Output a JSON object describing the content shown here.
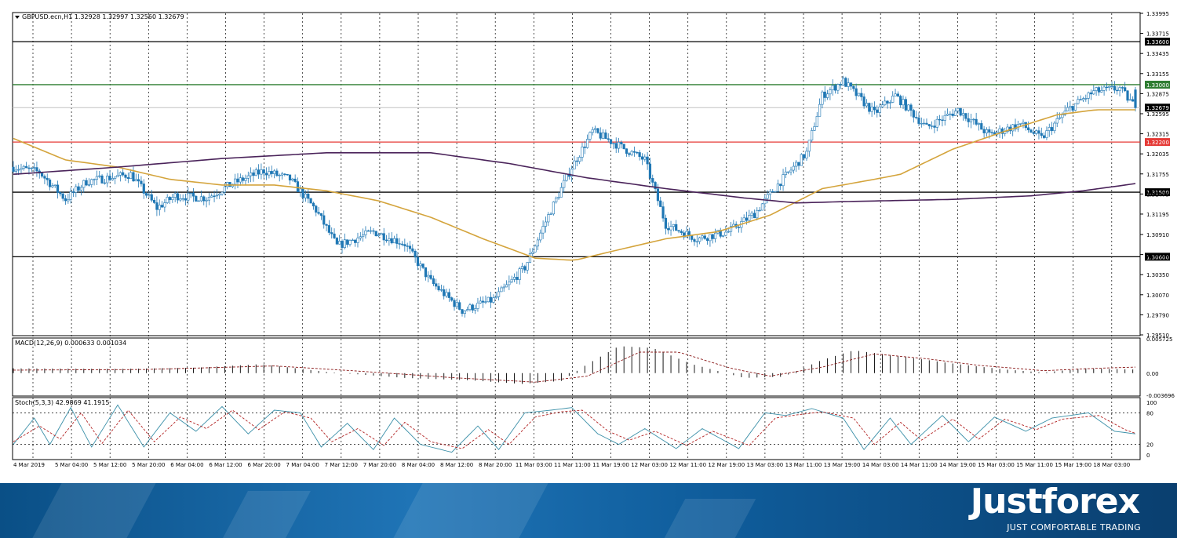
{
  "chart_data": [
    {
      "type": "candlestick",
      "header": "GBPUSD.ecn,H1  1.32928 1.32997 1.32560 1.32679",
      "symbol": "GBPUSD.ecn",
      "timeframe": "H1",
      "ohlc": {
        "open": 1.32928,
        "high": 1.32997,
        "low": 1.3256,
        "close": 1.32679
      },
      "ylim": [
        1.2951,
        1.33995
      ],
      "y_ticks": [
        "1.33995",
        "1.33715",
        "1.33435",
        "1.33155",
        "1.32875",
        "1.32595",
        "1.32315",
        "1.32035",
        "1.31755",
        "1.31475",
        "1.31195",
        "1.30910",
        "1.30630",
        "1.30350",
        "1.30070",
        "1.29790",
        "1.29510"
      ],
      "x_labels": [
        "4 Mar 2019",
        "5 Mar 04:00",
        "5 Mar 12:00",
        "5 Mar 20:00",
        "6 Mar 04:00",
        "6 Mar 12:00",
        "6 Mar 20:00",
        "7 Mar 04:00",
        "7 Mar 12:00",
        "7 Mar 20:00",
        "8 Mar 04:00",
        "8 Mar 12:00",
        "8 Mar 20:00",
        "11 Mar 03:00",
        "11 Mar 11:00",
        "11 Mar 19:00",
        "12 Mar 03:00",
        "12 Mar 11:00",
        "12 Mar 19:00",
        "13 Mar 03:00",
        "13 Mar 11:00",
        "13 Mar 19:00",
        "14 Mar 03:00",
        "14 Mar 11:00",
        "14 Mar 19:00",
        "15 Mar 03:00",
        "15 Mar 11:00",
        "15 Mar 19:00",
        "18 Mar 03:00"
      ],
      "levels": [
        {
          "value": 1.336,
          "label": "1.33600",
          "color": "#000000"
        },
        {
          "value": 1.33,
          "label": "1.33000",
          "color": "#2e7d32"
        },
        {
          "value": 1.3268,
          "label": "1.32679",
          "color": "#c0c0c0"
        },
        {
          "value": 1.322,
          "label": "1.32200",
          "color": "#e53935"
        },
        {
          "value": 1.315,
          "label": "1.31500",
          "color": "#000000"
        },
        {
          "value": 1.306,
          "label": "1.30600",
          "color": "#000000"
        }
      ],
      "price_anchors": [
        [
          0,
          1.3185
        ],
        [
          10,
          1.3178
        ],
        [
          20,
          1.314
        ],
        [
          28,
          1.3165
        ],
        [
          45,
          1.3175
        ],
        [
          55,
          1.3128
        ],
        [
          62,
          1.3145
        ],
        [
          74,
          1.3142
        ],
        [
          84,
          1.3162
        ],
        [
          96,
          1.318
        ],
        [
          106,
          1.3168
        ],
        [
          116,
          1.3125
        ],
        [
          124,
          1.3075
        ],
        [
          138,
          1.3095
        ],
        [
          150,
          1.3078
        ],
        [
          160,
          1.3025
        ],
        [
          172,
          1.2985
        ],
        [
          184,
          1.3
        ],
        [
          196,
          1.3045
        ],
        [
          206,
          1.3125
        ],
        [
          214,
          1.3185
        ],
        [
          222,
          1.3235
        ],
        [
          232,
          1.3215
        ],
        [
          242,
          1.3195
        ],
        [
          250,
          1.3105
        ],
        [
          262,
          1.3085
        ],
        [
          274,
          1.3095
        ],
        [
          284,
          1.312
        ],
        [
          294,
          1.3165
        ],
        [
          304,
          1.3205
        ],
        [
          310,
          1.3285
        ],
        [
          318,
          1.3305
        ],
        [
          330,
          1.326
        ],
        [
          338,
          1.3285
        ],
        [
          350,
          1.324
        ],
        [
          362,
          1.3265
        ],
        [
          374,
          1.323
        ],
        [
          386,
          1.3245
        ],
        [
          394,
          1.3225
        ],
        [
          404,
          1.3265
        ],
        [
          414,
          1.329
        ],
        [
          424,
          1.3295
        ],
        [
          430,
          1.3268
        ]
      ],
      "ma_fast_anchors": [
        [
          0,
          1.3225
        ],
        [
          20,
          1.3195
        ],
        [
          40,
          1.3185
        ],
        [
          60,
          1.3168
        ],
        [
          80,
          1.316
        ],
        [
          100,
          1.316
        ],
        [
          120,
          1.3152
        ],
        [
          140,
          1.3138
        ],
        [
          160,
          1.3115
        ],
        [
          180,
          1.3085
        ],
        [
          200,
          1.3058
        ],
        [
          215,
          1.3055
        ],
        [
          230,
          1.3068
        ],
        [
          250,
          1.3085
        ],
        [
          270,
          1.3095
        ],
        [
          290,
          1.3118
        ],
        [
          310,
          1.3155
        ],
        [
          330,
          1.3168
        ],
        [
          340,
          1.3175
        ],
        [
          360,
          1.321
        ],
        [
          380,
          1.3235
        ],
        [
          400,
          1.3258
        ],
        [
          415,
          1.3265
        ],
        [
          430,
          1.3265
        ]
      ],
      "ma_slow_anchors": [
        [
          0,
          1.3175
        ],
        [
          40,
          1.3185
        ],
        [
          80,
          1.3197
        ],
        [
          120,
          1.3205
        ],
        [
          160,
          1.3205
        ],
        [
          190,
          1.319
        ],
        [
          220,
          1.317
        ],
        [
          250,
          1.3155
        ],
        [
          280,
          1.3142
        ],
        [
          300,
          1.3135
        ],
        [
          320,
          1.3137
        ],
        [
          360,
          1.314
        ],
        [
          390,
          1.3145
        ],
        [
          410,
          1.3152
        ],
        [
          430,
          1.3162
        ]
      ]
    },
    {
      "type": "bar",
      "header": "MACD(12,26,9) 0.000633 0.001034",
      "ylim": [
        -0.003696,
        0.005725
      ],
      "y_ticks": [
        "0.005725",
        "0.00",
        "-0.003696"
      ],
      "macd_anchors": [
        [
          0,
          0.0008
        ],
        [
          40,
          0.0007
        ],
        [
          70,
          0.0009
        ],
        [
          95,
          0.0015
        ],
        [
          120,
          0.0002
        ],
        [
          150,
          -0.0008
        ],
        [
          175,
          -0.0012
        ],
        [
          195,
          -0.0018
        ],
        [
          210,
          -0.0013
        ],
        [
          220,
          0.0015
        ],
        [
          232,
          0.0045
        ],
        [
          245,
          0.0042
        ],
        [
          260,
          0.0015
        ],
        [
          280,
          -0.0008
        ],
        [
          295,
          -0.0006
        ],
        [
          310,
          0.0022
        ],
        [
          322,
          0.0038
        ],
        [
          340,
          0.0028
        ],
        [
          360,
          0.0016
        ],
        [
          380,
          0.0006
        ],
        [
          395,
          0.0001
        ],
        [
          410,
          0.0008
        ],
        [
          430,
          0.0006
        ]
      ],
      "signal_anchors": [
        [
          0,
          0.0005
        ],
        [
          50,
          0.0006
        ],
        [
          100,
          0.0012
        ],
        [
          130,
          0.0004
        ],
        [
          170,
          -0.0008
        ],
        [
          200,
          -0.0015
        ],
        [
          220,
          -0.0005
        ],
        [
          240,
          0.0035
        ],
        [
          255,
          0.0035
        ],
        [
          275,
          0.0008
        ],
        [
          290,
          -0.0005
        ],
        [
          310,
          0.001
        ],
        [
          330,
          0.0032
        ],
        [
          350,
          0.0024
        ],
        [
          370,
          0.0013
        ],
        [
          395,
          0.0004
        ],
        [
          415,
          0.0008
        ],
        [
          430,
          0.001
        ]
      ]
    },
    {
      "type": "line",
      "header": "Stoch(5,3,3) 42.9869 41.1915",
      "ylim": [
        0,
        100
      ],
      "y_ticks": [
        "100",
        "80",
        "20",
        "0"
      ],
      "k_anchors": [
        [
          0,
          20
        ],
        [
          8,
          70
        ],
        [
          14,
          20
        ],
        [
          22,
          90
        ],
        [
          30,
          15
        ],
        [
          40,
          95
        ],
        [
          50,
          15
        ],
        [
          60,
          80
        ],
        [
          70,
          45
        ],
        [
          80,
          92
        ],
        [
          90,
          40
        ],
        [
          100,
          85
        ],
        [
          110,
          80
        ],
        [
          118,
          15
        ],
        [
          128,
          60
        ],
        [
          138,
          10
        ],
        [
          146,
          70
        ],
        [
          156,
          20
        ],
        [
          168,
          5
        ],
        [
          178,
          55
        ],
        [
          186,
          10
        ],
        [
          196,
          80
        ],
        [
          206,
          85
        ],
        [
          214,
          90
        ],
        [
          224,
          40
        ],
        [
          232,
          20
        ],
        [
          242,
          50
        ],
        [
          254,
          12
        ],
        [
          264,
          50
        ],
        [
          278,
          12
        ],
        [
          288,
          80
        ],
        [
          296,
          75
        ],
        [
          306,
          88
        ],
        [
          318,
          70
        ],
        [
          326,
          10
        ],
        [
          336,
          70
        ],
        [
          344,
          20
        ],
        [
          356,
          75
        ],
        [
          366,
          25
        ],
        [
          376,
          72
        ],
        [
          388,
          45
        ],
        [
          398,
          70
        ],
        [
          412,
          80
        ],
        [
          422,
          45
        ],
        [
          430,
          40
        ]
      ],
      "d_anchors": [
        [
          0,
          25
        ],
        [
          10,
          55
        ],
        [
          18,
          30
        ],
        [
          26,
          80
        ],
        [
          34,
          22
        ],
        [
          44,
          85
        ],
        [
          54,
          25
        ],
        [
          64,
          72
        ],
        [
          74,
          50
        ],
        [
          84,
          85
        ],
        [
          94,
          48
        ],
        [
          104,
          82
        ],
        [
          114,
          70
        ],
        [
          122,
          25
        ],
        [
          132,
          50
        ],
        [
          142,
          18
        ],
        [
          150,
          62
        ],
        [
          160,
          25
        ],
        [
          172,
          12
        ],
        [
          182,
          48
        ],
        [
          190,
          20
        ],
        [
          200,
          72
        ],
        [
          210,
          82
        ],
        [
          218,
          85
        ],
        [
          228,
          45
        ],
        [
          236,
          28
        ],
        [
          246,
          45
        ],
        [
          258,
          18
        ],
        [
          268,
          45
        ],
        [
          282,
          18
        ],
        [
          292,
          70
        ],
        [
          300,
          76
        ],
        [
          310,
          82
        ],
        [
          322,
          70
        ],
        [
          330,
          20
        ],
        [
          340,
          62
        ],
        [
          348,
          28
        ],
        [
          360,
          68
        ],
        [
          370,
          30
        ],
        [
          380,
          68
        ],
        [
          392,
          48
        ],
        [
          402,
          68
        ],
        [
          416,
          75
        ],
        [
          426,
          48
        ],
        [
          430,
          41
        ]
      ]
    }
  ],
  "brand": {
    "logo": "Justforex",
    "tagline": "JUST COMFORTABLE TRADING"
  },
  "colors": {
    "up": "#ffffff",
    "down": "#1f77b4",
    "ma_fast": "#d4a43c",
    "ma_slow": "#4a235a",
    "grid": "#000000"
  }
}
